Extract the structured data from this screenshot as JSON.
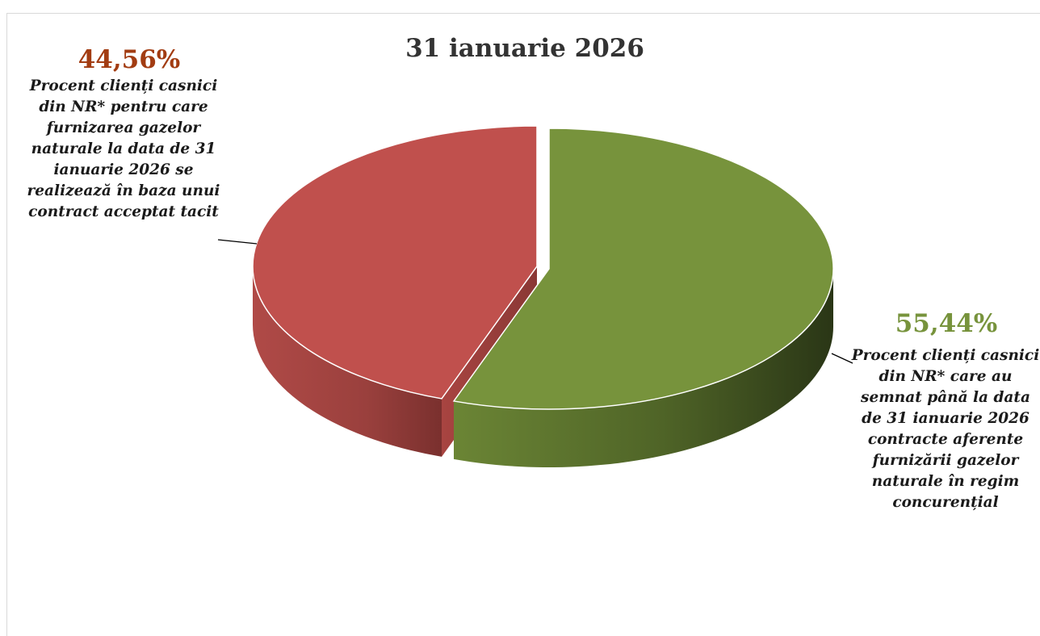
{
  "chart_data": {
    "type": "pie",
    "title": "31 ianuarie 2026",
    "slices": [
      {
        "value": 44.56,
        "value_label": "44,56%",
        "label": "Procent clienți casnici din NR* pentru care furnizarea gazelor naturale la data de 31 ianuarie 2026 se realizează în baza unui contract acceptat tacit",
        "color": "#c0504d",
        "label_color": "#a23c12"
      },
      {
        "value": 55.44,
        "value_label": "55,44%",
        "label": "Procent clienți casnici din NR* care au semnat până la data de 31 ianuarie 2026 contracte aferente furnizării gazelor naturale în regim concurențial",
        "color": "#77933c",
        "label_color": "#77933c"
      }
    ],
    "legend": "none",
    "style": "3d-exploded"
  }
}
